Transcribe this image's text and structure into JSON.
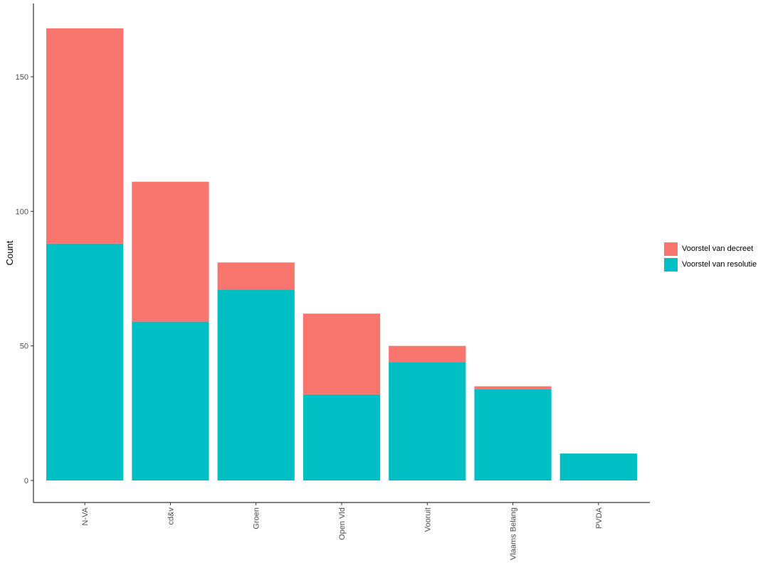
{
  "chart_data": {
    "type": "bar",
    "stacked": true,
    "categories": [
      "N-VA",
      "cd&v",
      "Groen",
      "Open Vld",
      "Vooruit",
      "Vlaams Belang",
      "PVDA"
    ],
    "series": [
      {
        "name": "Voorstel van resolutie",
        "color": "#00BFC4",
        "values": [
          88,
          59,
          71,
          32,
          44,
          34,
          10
        ]
      },
      {
        "name": "Voorstel van decreet",
        "color": "#F8766D",
        "values": [
          80,
          52,
          10,
          30,
          6,
          1,
          0
        ]
      }
    ],
    "title": "",
    "xlabel": "",
    "ylabel": "Count",
    "ylim": [
      -8.5,
      177
    ],
    "yticks": [
      0,
      50,
      100,
      150
    ],
    "grid": false,
    "legend": {
      "position": "right",
      "items": [
        {
          "label": "Voorstel van decreet",
          "color": "#F8766D"
        },
        {
          "label": "Voorstel van resolutie",
          "color": "#00BFC4"
        }
      ]
    }
  }
}
